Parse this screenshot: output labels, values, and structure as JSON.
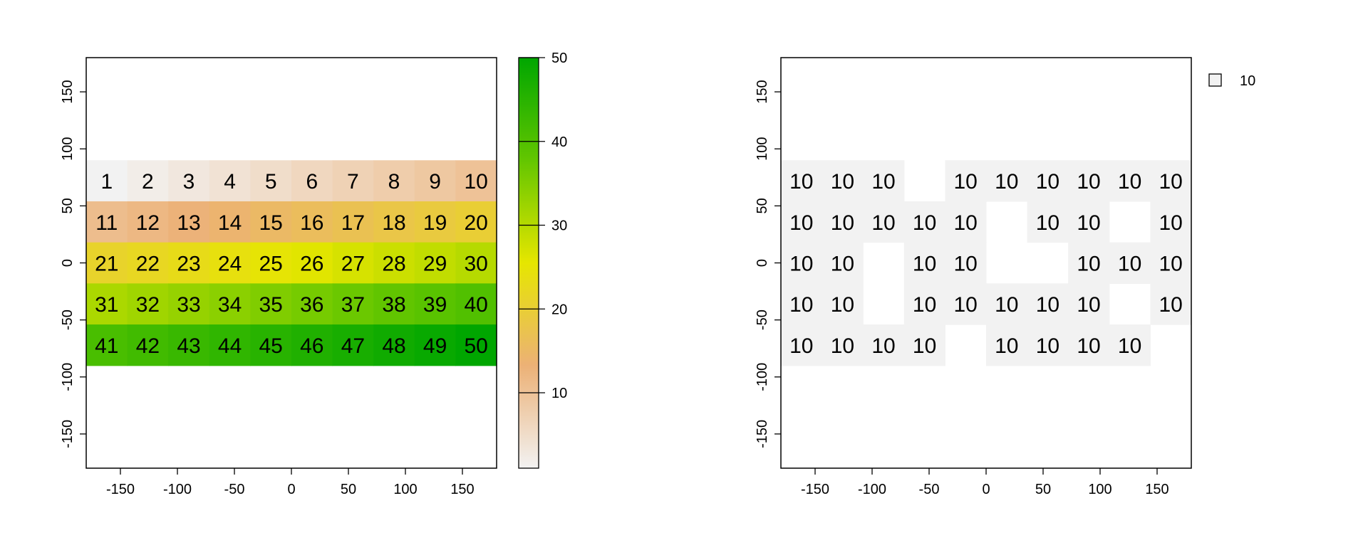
{
  "chart_data": [
    {
      "type": "heatmap",
      "title": "",
      "xlabel": "",
      "ylabel": "",
      "xlim": [
        -180,
        180
      ],
      "ylim": [
        -180,
        180
      ],
      "x_ticks": [
        "-150",
        "-100",
        "-50",
        "0",
        "50",
        "100",
        "150"
      ],
      "y_ticks": [
        "-150",
        "-100",
        "-50",
        "0",
        "50",
        "100",
        "150"
      ],
      "extent": {
        "xmin": -180,
        "xmax": 180,
        "ymin": -90,
        "ymax": 90
      },
      "ncol": 10,
      "nrow": 5,
      "values": [
        [
          1,
          2,
          3,
          4,
          5,
          6,
          7,
          8,
          9,
          10
        ],
        [
          11,
          12,
          13,
          14,
          15,
          16,
          17,
          18,
          19,
          20
        ],
        [
          21,
          22,
          23,
          24,
          25,
          26,
          27,
          28,
          29,
          30
        ],
        [
          31,
          32,
          33,
          34,
          35,
          36,
          37,
          38,
          39,
          40
        ],
        [
          41,
          42,
          43,
          44,
          45,
          46,
          47,
          48,
          49,
          50
        ]
      ],
      "colorbar": {
        "min": 1,
        "max": 50,
        "ticks": [
          "10",
          "20",
          "30",
          "40",
          "50"
        ],
        "colors": [
          "#f2f2f2",
          "#ecb176",
          "#e6e600",
          "#63c600",
          "#00a600"
        ],
        "placement": "right"
      }
    },
    {
      "type": "heatmap",
      "title": "",
      "xlabel": "",
      "ylabel": "",
      "xlim": [
        -180,
        180
      ],
      "ylim": [
        -180,
        180
      ],
      "x_ticks": [
        "-150",
        "-100",
        "-50",
        "0",
        "50",
        "100",
        "150"
      ],
      "y_ticks": [
        "-150",
        "-100",
        "-50",
        "0",
        "50",
        "100",
        "150"
      ],
      "extent": {
        "xmin": -180,
        "xmax": 180,
        "ymin": -90,
        "ymax": 90
      },
      "ncol": 10,
      "nrow": 5,
      "values": [
        [
          10,
          10,
          10,
          null,
          10,
          10,
          10,
          10,
          10,
          10
        ],
        [
          10,
          10,
          10,
          10,
          10,
          null,
          10,
          10,
          null,
          10
        ],
        [
          10,
          10,
          null,
          10,
          10,
          null,
          null,
          10,
          10,
          10
        ],
        [
          10,
          10,
          null,
          10,
          10,
          10,
          10,
          10,
          null,
          10
        ],
        [
          10,
          10,
          10,
          10,
          null,
          10,
          10,
          10,
          10,
          null
        ]
      ],
      "cell_color": "#f2f2f2",
      "legend": {
        "entries": [
          "10"
        ],
        "placement": "top-right"
      }
    }
  ]
}
